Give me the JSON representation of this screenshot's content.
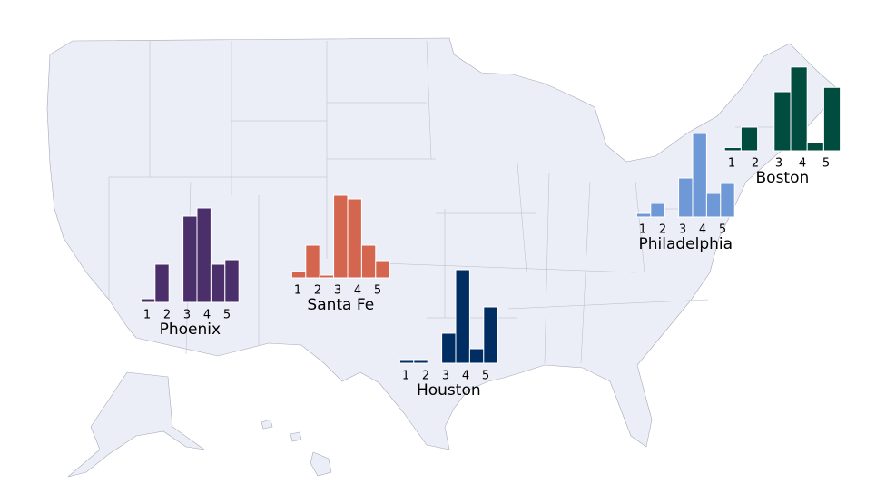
{
  "chart_data": [
    {
      "type": "histogram",
      "title": "Phoenix",
      "color": "#4a2f6b",
      "bins": [
        0.7,
        1.4,
        2.1,
        2.8,
        3.5,
        4.2,
        4.9,
        5.6
      ],
      "values": [
        4,
        42,
        0,
        95,
        104,
        42,
        47
      ],
      "xticks": [
        1,
        2,
        3,
        4,
        5
      ],
      "ylim": [
        0,
        110
      ]
    },
    {
      "type": "histogram",
      "title": "Santa Fe",
      "color": "#d4654e",
      "bins": [
        0.7,
        1.4,
        2.1,
        2.8,
        3.5,
        4.2,
        4.9,
        5.6
      ],
      "values": [
        7,
        36,
        3,
        91,
        87,
        36,
        19
      ],
      "xticks": [
        1,
        2,
        3,
        4,
        5
      ],
      "ylim": [
        0,
        110
      ]
    },
    {
      "type": "histogram",
      "title": "Houston",
      "color": "#002d62",
      "bins": [
        0.7,
        1.4,
        2.1,
        2.8,
        3.5,
        4.2,
        4.9,
        5.6
      ],
      "values": [
        4,
        4,
        0,
        33,
        103,
        16,
        62
      ],
      "xticks": [
        1,
        2,
        3,
        4,
        5
      ],
      "ylim": [
        0,
        110
      ]
    },
    {
      "type": "histogram",
      "title": "Philadelphia",
      "color": "#6f98d6",
      "bins": [
        0.7,
        1.4,
        2.1,
        2.8,
        3.5,
        4.2,
        4.9,
        5.6
      ],
      "values": [
        4,
        15,
        0,
        43,
        92,
        26,
        37
      ],
      "xticks": [
        1,
        2,
        3,
        4,
        5
      ],
      "ylim": [
        0,
        110
      ]
    },
    {
      "type": "histogram",
      "title": "Boston",
      "color": "#004d3f",
      "bins": [
        0.7,
        1.4,
        2.1,
        2.8,
        3.5,
        4.2,
        4.9,
        5.6
      ],
      "values": [
        3,
        22,
        0,
        55,
        78,
        8,
        59
      ],
      "xticks": [
        1,
        2,
        3,
        4,
        5
      ],
      "ylim": [
        0,
        110
      ]
    }
  ]
}
